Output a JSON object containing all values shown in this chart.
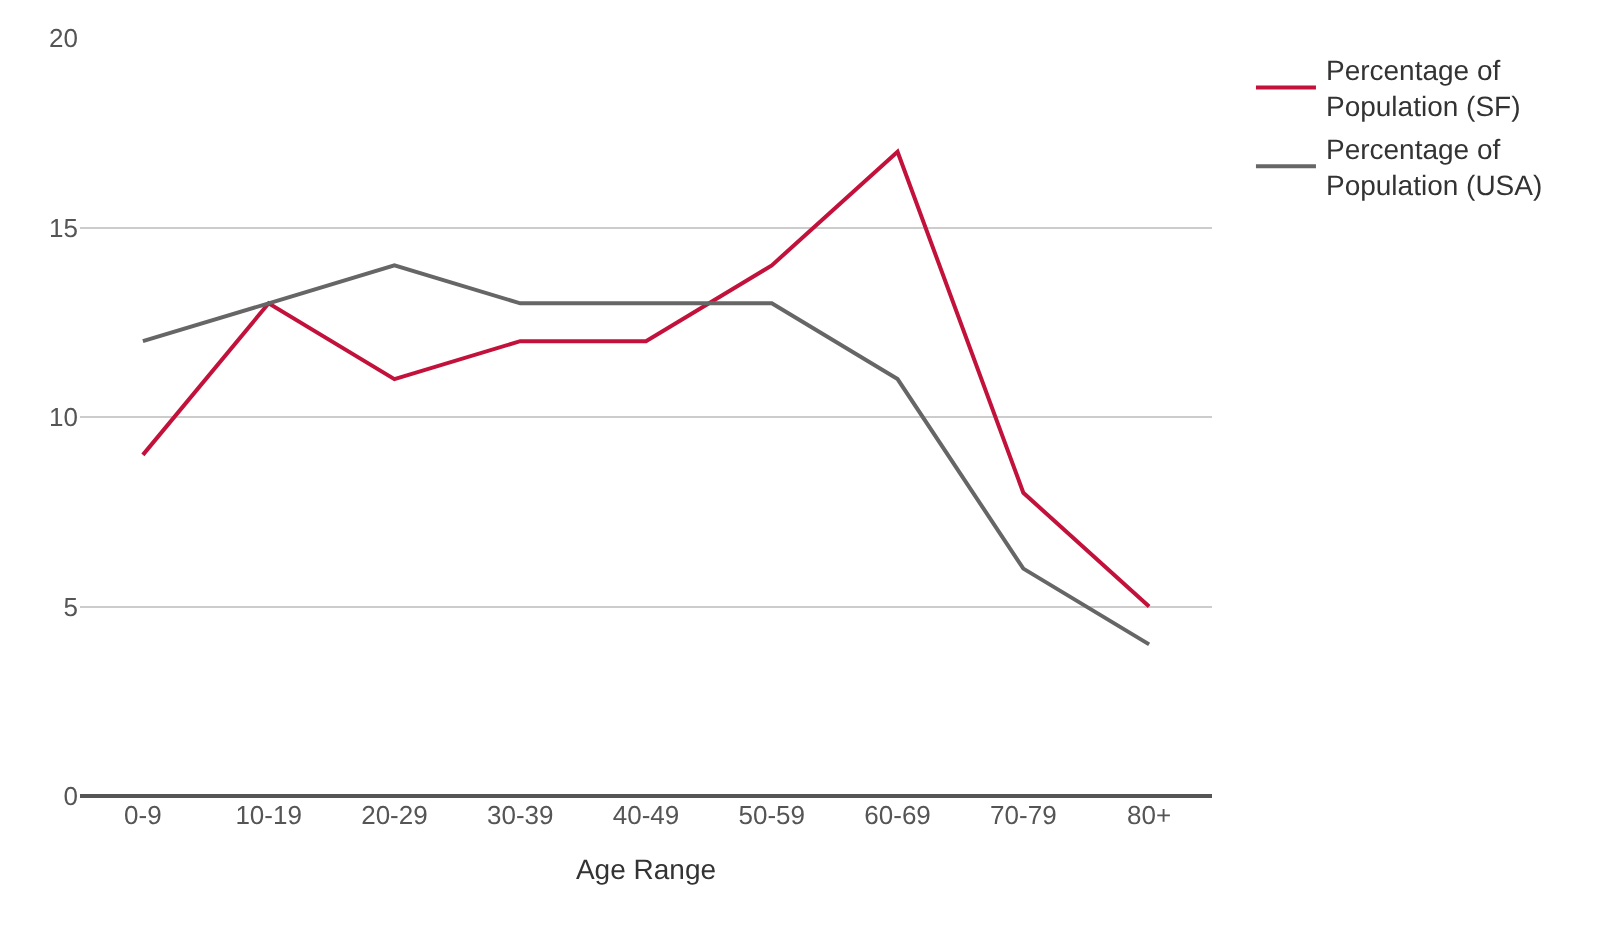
{
  "chart_data": {
    "type": "line",
    "xlabel": "Age Range",
    "categories": [
      "0-9",
      "10-19",
      "20-29",
      "30-39",
      "40-49",
      "50-59",
      "60-69",
      "70-79",
      "80+"
    ],
    "series": [
      {
        "name": "Percentage of Population (SF)",
        "color": "#c2113a",
        "values": [
          9,
          13,
          11,
          12,
          12,
          14,
          17,
          8,
          5
        ]
      },
      {
        "name": "Percentage of Population (USA)",
        "color": "#666666",
        "values": [
          12,
          13,
          14,
          13,
          13,
          13,
          11,
          6,
          4
        ]
      }
    ],
    "ylim": [
      0,
      20
    ],
    "yticks": [
      0,
      5,
      10,
      15,
      20
    ],
    "grid": "y",
    "legend": "top right",
    "marker": "none",
    "line_style": "solid"
  }
}
